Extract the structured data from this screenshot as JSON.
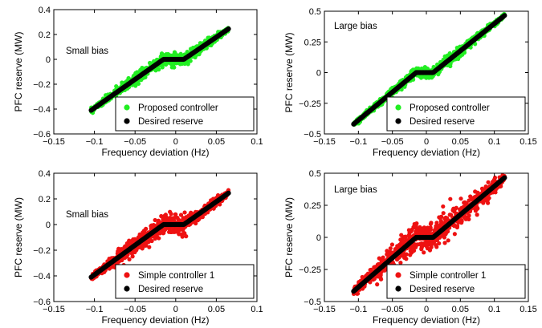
{
  "colors": {
    "proposed": "#22ee22",
    "simple": "#ee1111",
    "desired": "#000000"
  },
  "chart_data": [
    {
      "type": "scatter",
      "panel": "top-left",
      "xlabel": "Frequency deviation (Hz)",
      "ylabel": "PFC reserve (MW)",
      "annotation": "Small bias",
      "xlim": [
        -0.15,
        0.1
      ],
      "ylim": [
        -0.6,
        0.4
      ],
      "xticks": [
        -0.15,
        -0.1,
        -0.05,
        0,
        0.05,
        0.1
      ],
      "xtick_labels": [
        "−0.15",
        "−0.1",
        "−0.05",
        "0",
        "0.05",
        "0.1"
      ],
      "yticks": [
        -0.6,
        -0.4,
        -0.2,
        0,
        0.2,
        0.4
      ],
      "ytick_labels": [
        "−0.6",
        "−0.4",
        "−0.2",
        "0",
        "0.2",
        "0.4"
      ],
      "legend_position": "bottom-right",
      "series": [
        {
          "name": "Proposed controller",
          "color": "#22ee22",
          "x": [
            -0.104,
            0.065
          ],
          "spread": 0.05
        },
        {
          "name": "Desired reserve",
          "color": "#000000",
          "x": [
            -0.104,
            0.065
          ],
          "spread": 0.0
        }
      ],
      "deadband": [
        -0.015,
        0.01
      ],
      "endpoints": {
        "left": [
          -0.104,
          -0.41
        ],
        "right": [
          0.065,
          0.245
        ]
      }
    },
    {
      "type": "scatter",
      "panel": "top-right",
      "xlabel": "Frequency deviation (Hz)",
      "ylabel": "PFC reserve (MW)",
      "annotation": "Large bias",
      "xlim": [
        -0.15,
        0.15
      ],
      "ylim": [
        -0.5,
        0.5
      ],
      "xticks": [
        -0.15,
        -0.1,
        -0.05,
        0,
        0.05,
        0.1,
        0.15
      ],
      "xtick_labels": [
        "−0.15",
        "−0.1",
        "−0.05",
        "0",
        "0.05",
        "0.1",
        "0.15"
      ],
      "yticks": [
        -0.5,
        -0.25,
        0,
        0.25,
        0.5
      ],
      "ytick_labels": [
        "−0.5",
        "−0.25",
        "0",
        "0.25",
        "0.5"
      ],
      "legend_position": "bottom-right",
      "series": [
        {
          "name": "Proposed controller",
          "color": "#22ee22",
          "x": [
            -0.107,
            0.115
          ],
          "spread": 0.045
        },
        {
          "name": "Desired reserve",
          "color": "#000000",
          "x": [
            -0.107,
            0.115
          ],
          "spread": 0.0
        }
      ],
      "deadband": [
        -0.015,
        0.01
      ],
      "endpoints": {
        "left": [
          -0.107,
          -0.42
        ],
        "right": [
          0.115,
          0.465
        ]
      }
    },
    {
      "type": "scatter",
      "panel": "bottom-left",
      "xlabel": "Frequency deviation (Hz)",
      "ylabel": "PFC reserve (MW)",
      "annotation": "Small bias",
      "xlim": [
        -0.15,
        0.1
      ],
      "ylim": [
        -0.6,
        0.4
      ],
      "xticks": [
        -0.15,
        -0.1,
        -0.05,
        0,
        0.05,
        0.1
      ],
      "xtick_labels": [
        "−0.15",
        "−0.1",
        "−0.05",
        "0",
        "0.05",
        "0.1"
      ],
      "yticks": [
        -0.6,
        -0.4,
        -0.2,
        0,
        0.2,
        0.4
      ],
      "ytick_labels": [
        "−0.6",
        "−0.4",
        "−0.2",
        "0",
        "0.2",
        "0.4"
      ],
      "legend_position": "bottom-right",
      "series": [
        {
          "name": "Simple controller 1",
          "color": "#ee1111",
          "x": [
            -0.104,
            0.065
          ],
          "spread": 0.07
        },
        {
          "name": "Desired reserve",
          "color": "#000000",
          "x": [
            -0.104,
            0.065
          ],
          "spread": 0.0
        }
      ],
      "deadband": [
        -0.015,
        0.01
      ],
      "endpoints": {
        "left": [
          -0.104,
          -0.41
        ],
        "right": [
          0.065,
          0.245
        ]
      }
    },
    {
      "type": "scatter",
      "panel": "bottom-right",
      "xlabel": "Frequency deviation (Hz)",
      "ylabel": "PFC reserve (MW)",
      "annotation": "Large bias",
      "xlim": [
        -0.15,
        0.15
      ],
      "ylim": [
        -0.5,
        0.5
      ],
      "xticks": [
        -0.15,
        -0.1,
        -0.05,
        0,
        0.05,
        0.1,
        0.15
      ],
      "xtick_labels": [
        "−0.15",
        "−0.1",
        "−0.05",
        "0",
        "0.05",
        "0.1",
        "0.15"
      ],
      "yticks": [
        -0.5,
        -0.25,
        0,
        0.25,
        0.5
      ],
      "ytick_labels": [
        "−0.5",
        "−0.25",
        "0",
        "0.25",
        "0.5"
      ],
      "legend_position": "bottom-right",
      "series": [
        {
          "name": "Simple controller 1",
          "color": "#ee1111",
          "x": [
            -0.107,
            0.115
          ],
          "spread": 0.11
        },
        {
          "name": "Desired reserve",
          "color": "#000000",
          "x": [
            -0.107,
            0.115
          ],
          "spread": 0.0
        }
      ],
      "deadband": [
        -0.015,
        0.01
      ],
      "endpoints": {
        "left": [
          -0.107,
          -0.42
        ],
        "right": [
          0.115,
          0.465
        ]
      }
    }
  ]
}
